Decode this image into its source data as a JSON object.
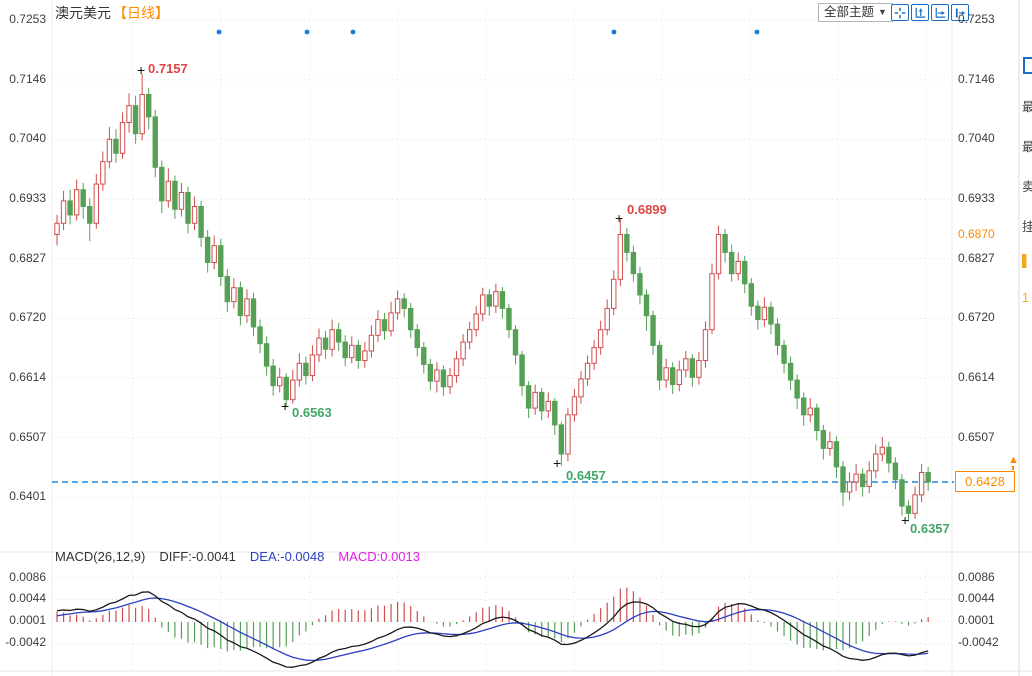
{
  "header": {
    "title": "澳元美元",
    "period_tag": "【日线】",
    "themes_dropdown": {
      "label": "全部主题",
      "arrow": "▼"
    },
    "toolbar_icons": [
      "crosshair-icon",
      "scale-vertical-icon",
      "scale-horizontal-icon",
      "shift-right-icon"
    ]
  },
  "icons": {
    "alert_arrow": "▲"
  },
  "colors": {
    "up_candle": "#cf4e4e",
    "down_candle": "#55a055",
    "annotation_up": "#e04343",
    "annotation_down": "#3fa865",
    "dashed_price_line": "#1e86e0",
    "current_price_orange": "#ff8a00",
    "grid": "#e2e2e2",
    "axis_text": "#3d3d3d",
    "event_dot": "#1a7bd4",
    "icon_blue": "#1a6fc4",
    "diff_line": "#1a1a1a",
    "dea_line": "#2b3fc0",
    "macd_value_text": "#e619e6"
  },
  "right_panel": {
    "partial_labels": [
      "最",
      "最",
      "卖",
      "挂"
    ],
    "partial_orange": [
      "▌",
      "1"
    ]
  },
  "chart_data": [
    {
      "type": "candlestick",
      "symbol": "澳元美元",
      "period": "日线",
      "price_unit": 0.0001,
      "price_axis": {
        "ticks": [
          "0.7253",
          "0.7146",
          "0.7040",
          "0.6933",
          "0.6827",
          "0.6720",
          "0.6614",
          "0.6507",
          "0.6401"
        ],
        "alert_level": "0.6870"
      },
      "current_price": {
        "label": "0.6428",
        "value": 0.6428
      },
      "annotations": [
        {
          "label": "0.7157",
          "marker": "+",
          "kind": "high"
        },
        {
          "label": "0.6563",
          "marker": "+",
          "kind": "low"
        },
        {
          "label": "0.6899",
          "marker": "+",
          "kind": "high"
        },
        {
          "label": "0.6457",
          "marker": "+",
          "kind": "low"
        },
        {
          "label": "0.6357",
          "marker": "+",
          "kind": "low"
        }
      ],
      "event_dots_x": [
        219,
        307,
        353,
        614,
        757
      ],
      "candles": [
        [
          6870,
          6905,
          6850,
          6890
        ],
        [
          6890,
          6948,
          6878,
          6930
        ],
        [
          6930,
          6950,
          6888,
          6905
        ],
        [
          6905,
          6968,
          6895,
          6950
        ],
        [
          6950,
          6962,
          6898,
          6920
        ],
        [
          6920,
          6935,
          6858,
          6890
        ],
        [
          6890,
          6978,
          6880,
          6960
        ],
        [
          6960,
          7018,
          6948,
          7000
        ],
        [
          7000,
          7062,
          6988,
          7040
        ],
        [
          7040,
          7058,
          6998,
          7015
        ],
        [
          7015,
          7088,
          7005,
          7070
        ],
        [
          7070,
          7122,
          7052,
          7100
        ],
        [
          7100,
          7118,
          7032,
          7050
        ],
        [
          7050,
          7157,
          7038,
          7120
        ],
        [
          7120,
          7132,
          7058,
          7080
        ],
        [
          7080,
          7092,
          6972,
          6990
        ],
        [
          6990,
          7002,
          6908,
          6930
        ],
        [
          6930,
          6988,
          6918,
          6965
        ],
        [
          6965,
          6975,
          6898,
          6915
        ],
        [
          6915,
          6962,
          6902,
          6945
        ],
        [
          6945,
          6955,
          6872,
          6890
        ],
        [
          6890,
          6938,
          6878,
          6920
        ],
        [
          6920,
          6930,
          6848,
          6865
        ],
        [
          6865,
          6878,
          6802,
          6820
        ],
        [
          6820,
          6868,
          6808,
          6850
        ],
        [
          6850,
          6862,
          6778,
          6795
        ],
        [
          6795,
          6808,
          6732,
          6750
        ],
        [
          6750,
          6792,
          6738,
          6775
        ],
        [
          6775,
          6786,
          6708,
          6725
        ],
        [
          6725,
          6772,
          6712,
          6755
        ],
        [
          6755,
          6766,
          6688,
          6705
        ],
        [
          6705,
          6718,
          6658,
          6675
        ],
        [
          6675,
          6688,
          6618,
          6635
        ],
        [
          6635,
          6648,
          6582,
          6600
        ],
        [
          6600,
          6632,
          6588,
          6615
        ],
        [
          6615,
          6622,
          6563,
          6575
        ],
        [
          6575,
          6628,
          6568,
          6610
        ],
        [
          6610,
          6658,
          6598,
          6640
        ],
        [
          6640,
          6652,
          6602,
          6618
        ],
        [
          6618,
          6672,
          6608,
          6655
        ],
        [
          6655,
          6702,
          6642,
          6685
        ],
        [
          6685,
          6698,
          6648,
          6665
        ],
        [
          6665,
          6718,
          6652,
          6700
        ],
        [
          6700,
          6712,
          6662,
          6678
        ],
        [
          6678,
          6690,
          6635,
          6650
        ],
        [
          6650,
          6688,
          6640,
          6672
        ],
        [
          6672,
          6682,
          6630,
          6645
        ],
        [
          6645,
          6678,
          6632,
          6662
        ],
        [
          6662,
          6708,
          6650,
          6690
        ],
        [
          6690,
          6735,
          6678,
          6718
        ],
        [
          6718,
          6730,
          6682,
          6698
        ],
        [
          6698,
          6750,
          6688,
          6730
        ],
        [
          6730,
          6770,
          6718,
          6755
        ],
        [
          6755,
          6765,
          6722,
          6738
        ],
        [
          6738,
          6748,
          6685,
          6700
        ],
        [
          6700,
          6710,
          6652,
          6668
        ],
        [
          6668,
          6678,
          6622,
          6638
        ],
        [
          6638,
          6648,
          6592,
          6608
        ],
        [
          6608,
          6642,
          6588,
          6628
        ],
        [
          6628,
          6636,
          6582,
          6598
        ],
        [
          6598,
          6632,
          6585,
          6618
        ],
        [
          6618,
          6662,
          6605,
          6648
        ],
        [
          6648,
          6692,
          6635,
          6678
        ],
        [
          6678,
          6714,
          6665,
          6700
        ],
        [
          6700,
          6742,
          6688,
          6728
        ],
        [
          6728,
          6775,
          6715,
          6762
        ],
        [
          6762,
          6772,
          6725,
          6742
        ],
        [
          6742,
          6782,
          6730,
          6768
        ],
        [
          6768,
          6776,
          6720,
          6738
        ],
        [
          6738,
          6746,
          6685,
          6700
        ],
        [
          6700,
          6708,
          6638,
          6655
        ],
        [
          6655,
          6662,
          6582,
          6600
        ],
        [
          6600,
          6608,
          6542,
          6560
        ],
        [
          6560,
          6602,
          6548,
          6588
        ],
        [
          6588,
          6596,
          6538,
          6555
        ],
        [
          6555,
          6588,
          6542,
          6572
        ],
        [
          6572,
          6578,
          6512,
          6530
        ],
        [
          6530,
          6535,
          6457,
          6478
        ],
        [
          6478,
          6560,
          6465,
          6548
        ],
        [
          6548,
          6594,
          6536,
          6580
        ],
        [
          6580,
          6626,
          6568,
          6612
        ],
        [
          6612,
          6654,
          6600,
          6640
        ],
        [
          6640,
          6682,
          6628,
          6668
        ],
        [
          6668,
          6716,
          6655,
          6700
        ],
        [
          6700,
          6754,
          6690,
          6738
        ],
        [
          6738,
          6806,
          6726,
          6790
        ],
        [
          6790,
          6899,
          6778,
          6870
        ],
        [
          6870,
          6882,
          6822,
          6838
        ],
        [
          6838,
          6850,
          6786,
          6800
        ],
        [
          6800,
          6812,
          6745,
          6762
        ],
        [
          6762,
          6772,
          6698,
          6725
        ],
        [
          6725,
          6734,
          6655,
          6672
        ],
        [
          6672,
          6680,
          6592,
          6610
        ],
        [
          6610,
          6648,
          6596,
          6632
        ],
        [
          6632,
          6642,
          6585,
          6602
        ],
        [
          6602,
          6645,
          6590,
          6628
        ],
        [
          6628,
          6662,
          6615,
          6648
        ],
        [
          6648,
          6656,
          6598,
          6615
        ],
        [
          6615,
          6660,
          6602,
          6645
        ],
        [
          6645,
          6715,
          6632,
          6700
        ],
        [
          6700,
          6818,
          6692,
          6800
        ],
        [
          6800,
          6886,
          6790,
          6870
        ],
        [
          6870,
          6880,
          6820,
          6838
        ],
        [
          6838,
          6852,
          6786,
          6800
        ],
        [
          6800,
          6838,
          6788,
          6822
        ],
        [
          6822,
          6832,
          6765,
          6782
        ],
        [
          6782,
          6792,
          6725,
          6742
        ],
        [
          6742,
          6752,
          6700,
          6718
        ],
        [
          6718,
          6758,
          6705,
          6740
        ],
        [
          6740,
          6750,
          6692,
          6710
        ],
        [
          6710,
          6720,
          6655,
          6672
        ],
        [
          6672,
          6682,
          6622,
          6640
        ],
        [
          6640,
          6652,
          6592,
          6610
        ],
        [
          6610,
          6620,
          6558,
          6578
        ],
        [
          6578,
          6588,
          6528,
          6548
        ],
        [
          6548,
          6578,
          6535,
          6560
        ],
        [
          6560,
          6568,
          6502,
          6520
        ],
        [
          6520,
          6530,
          6468,
          6488
        ],
        [
          6488,
          6518,
          6475,
          6500
        ],
        [
          6500,
          6510,
          6435,
          6455
        ],
        [
          6455,
          6465,
          6385,
          6410
        ],
        [
          6410,
          6445,
          6395,
          6428
        ],
        [
          6428,
          6460,
          6412,
          6442
        ],
        [
          6442,
          6452,
          6402,
          6420
        ],
        [
          6420,
          6465,
          6408,
          6448
        ],
        [
          6448,
          6495,
          6435,
          6478
        ],
        [
          6478,
          6508,
          6465,
          6490
        ],
        [
          6490,
          6500,
          6445,
          6462
        ],
        [
          6462,
          6472,
          6415,
          6432
        ],
        [
          6432,
          6442,
          6368,
          6385
        ],
        [
          6385,
          6395,
          6357,
          6372
        ],
        [
          6372,
          6420,
          6362,
          6405
        ],
        [
          6405,
          6460,
          6392,
          6445
        ],
        [
          6445,
          6455,
          6412,
          6428
        ]
      ]
    },
    {
      "type": "macd",
      "params": "MACD(26,12,9)",
      "diff": "DIFF:-0.0041",
      "dea": "DEA:-0.0048",
      "macd": "MACD:0.0013",
      "axis_ticks": [
        "0.0086",
        "0.0044",
        "0.0001",
        "-0.0042"
      ],
      "hist_scale": 2
    }
  ]
}
